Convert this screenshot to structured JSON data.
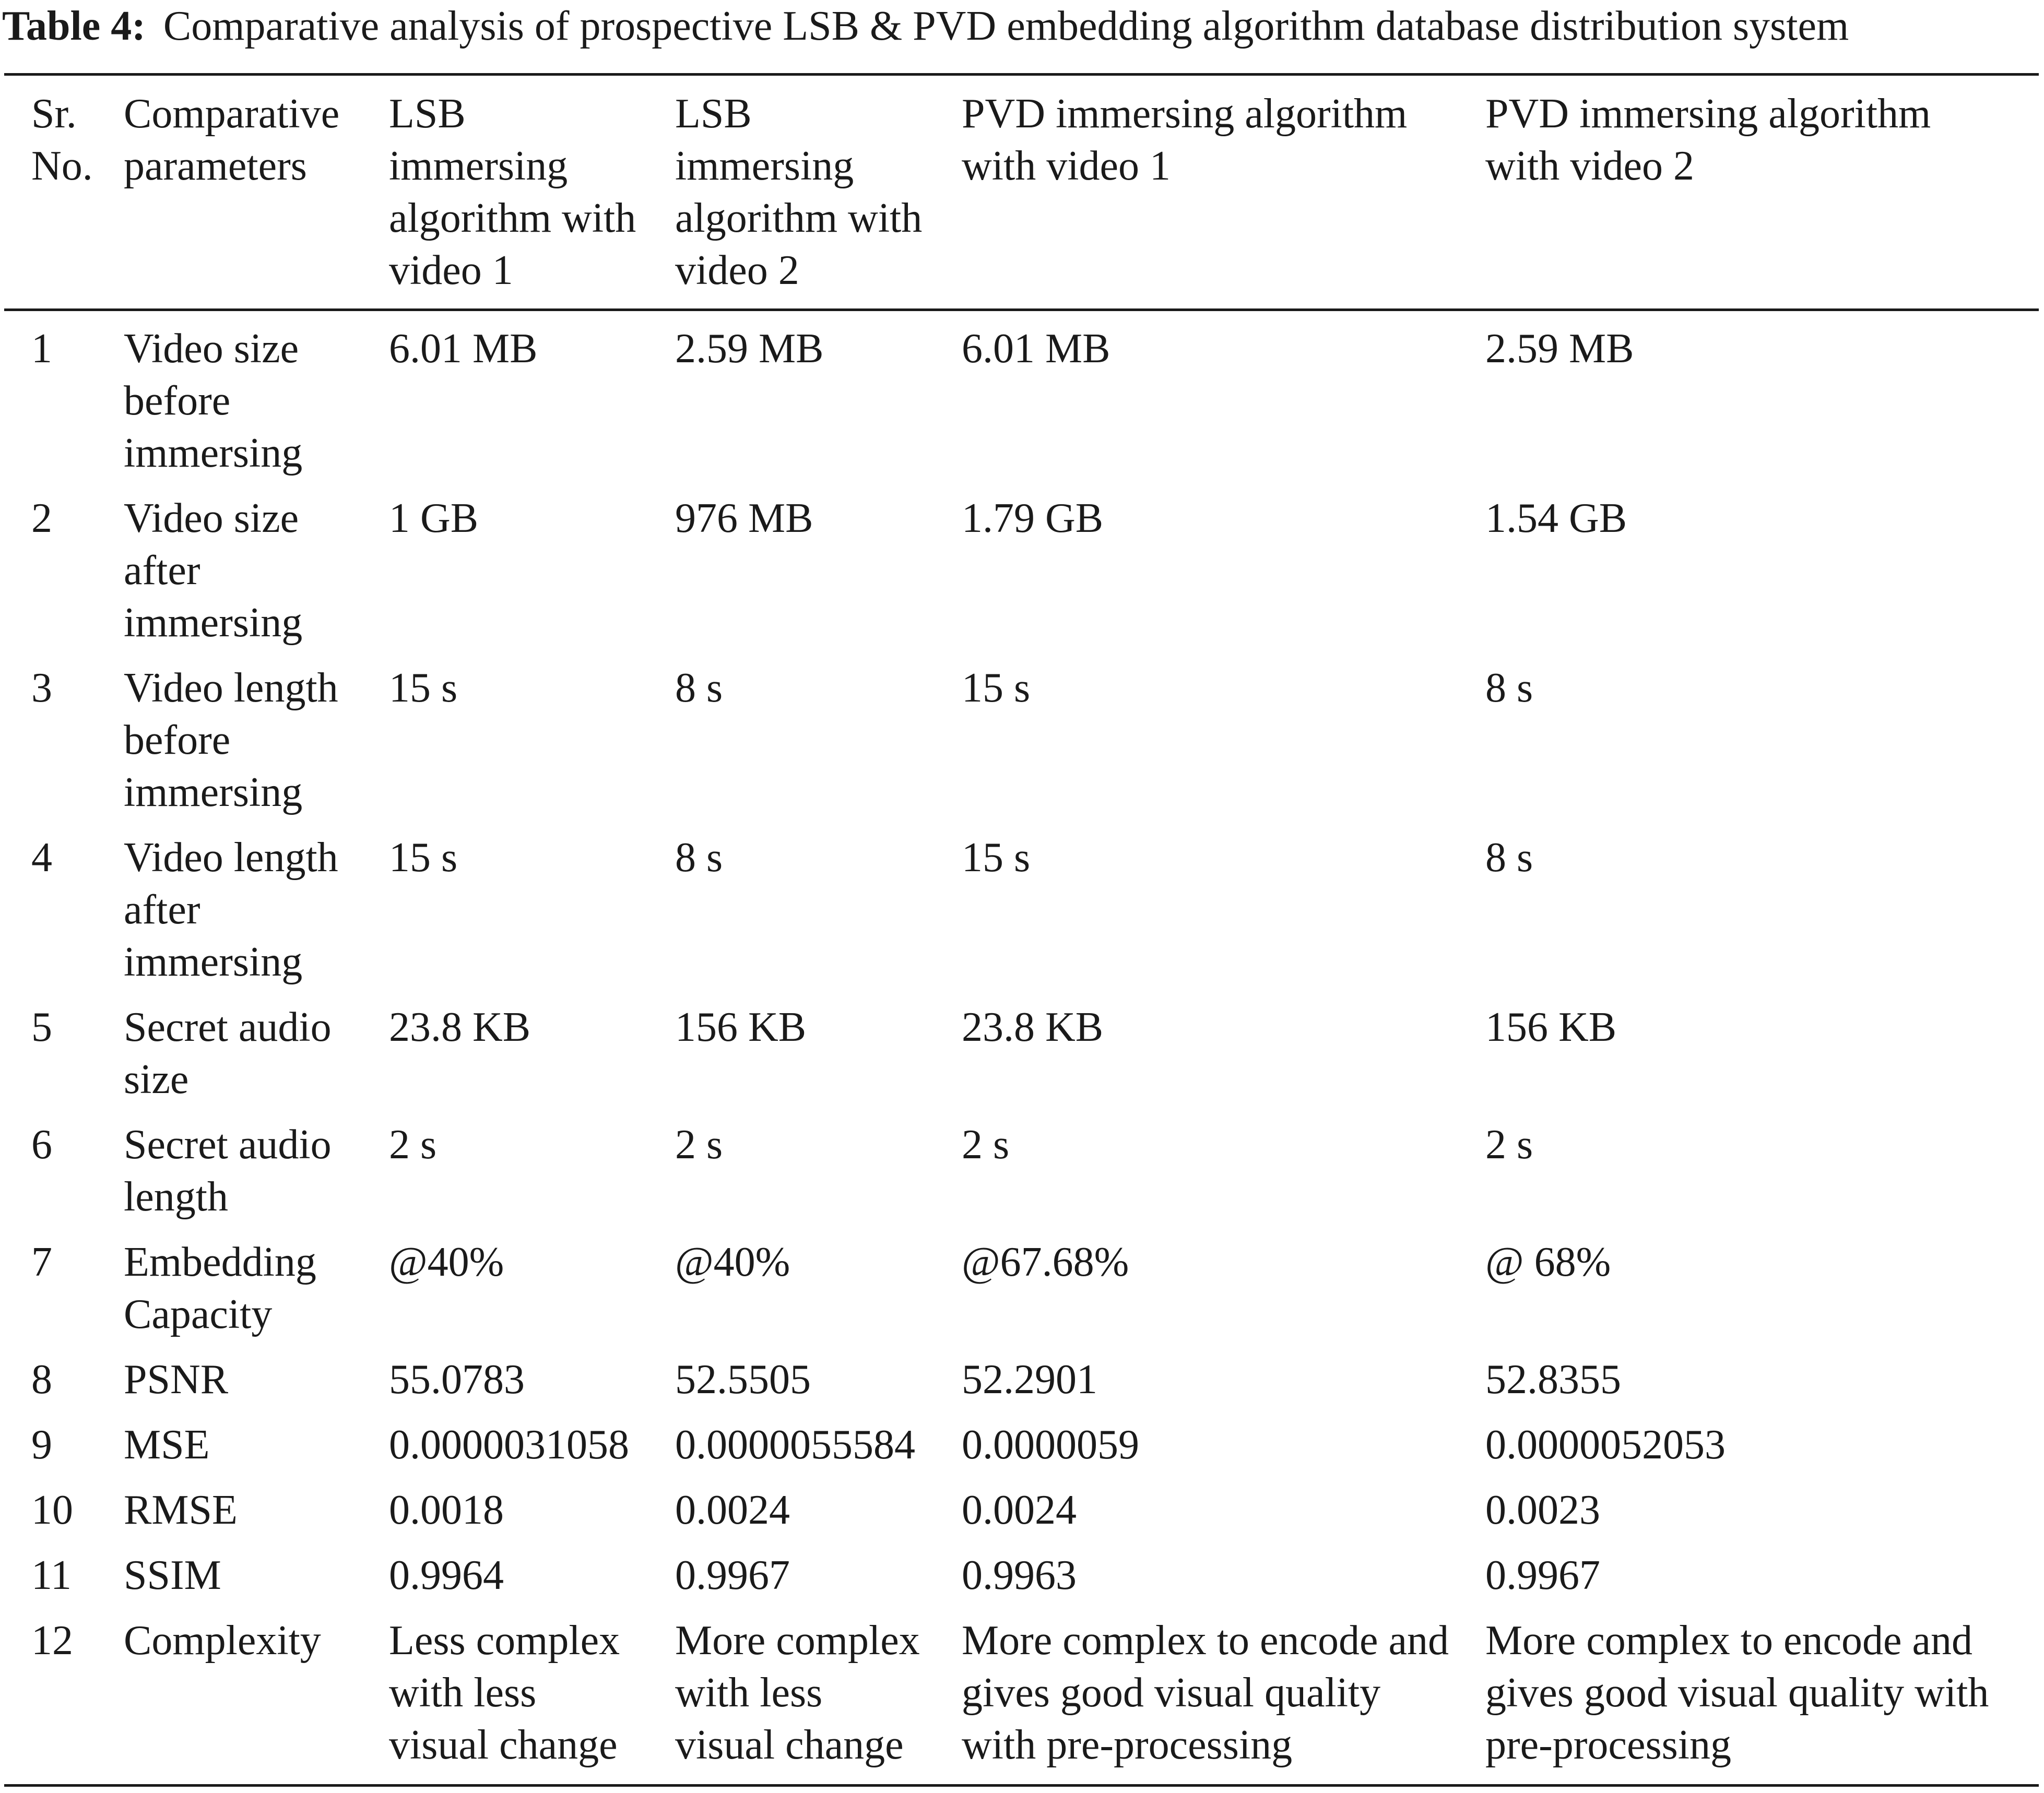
{
  "caption": {
    "label": "Table 4:",
    "text": "Comparative analysis of prospective LSB & PVD embedding algorithm database distribution system"
  },
  "headers": [
    [
      "Sr.",
      "No."
    ],
    [
      "Comparative",
      "parameters"
    ],
    [
      "LSB",
      "immersing",
      "algorithm with",
      "video 1"
    ],
    [
      "LSB",
      "immersing",
      "algorithm with",
      "video 2"
    ],
    [
      "PVD immersing algorithm",
      "with video 1"
    ],
    [
      "PVD immersing algorithm",
      "with video 2"
    ]
  ],
  "rows": [
    {
      "sr": "1",
      "param": [
        "Video size",
        "before",
        "immersing"
      ],
      "lsb1": [
        "6.01 MB"
      ],
      "lsb2": [
        "2.59 MB"
      ],
      "pvd1": [
        "6.01 MB"
      ],
      "pvd2": [
        "2.59 MB"
      ]
    },
    {
      "sr": "2",
      "param": [
        "Video size",
        "after",
        "immersing"
      ],
      "lsb1": [
        "1 GB"
      ],
      "lsb2": [
        "976 MB"
      ],
      "pvd1": [
        "1.79 GB"
      ],
      "pvd2": [
        "1.54 GB"
      ]
    },
    {
      "sr": "3",
      "param": [
        "Video length",
        "before",
        "immersing"
      ],
      "lsb1": [
        "15 s"
      ],
      "lsb2": [
        "8 s"
      ],
      "pvd1": [
        "15 s"
      ],
      "pvd2": [
        "8 s"
      ]
    },
    {
      "sr": "4",
      "param": [
        "Video length",
        "after",
        "immersing"
      ],
      "lsb1": [
        "15 s"
      ],
      "lsb2": [
        "8 s"
      ],
      "pvd1": [
        "15 s"
      ],
      "pvd2": [
        "8 s"
      ]
    },
    {
      "sr": "5",
      "param": [
        "Secret audio",
        "size"
      ],
      "lsb1": [
        "23.8 KB"
      ],
      "lsb2": [
        "156 KB"
      ],
      "pvd1": [
        "23.8 KB"
      ],
      "pvd2": [
        "156 KB"
      ]
    },
    {
      "sr": "6",
      "param": [
        "Secret audio",
        "length"
      ],
      "lsb1": [
        "2 s"
      ],
      "lsb2": [
        "2 s"
      ],
      "pvd1": [
        "2 s"
      ],
      "pvd2": [
        "2 s"
      ]
    },
    {
      "sr": "7",
      "param": [
        "Embedding",
        "Capacity"
      ],
      "lsb1": [
        "@40%"
      ],
      "lsb2": [
        "@40%"
      ],
      "pvd1": [
        "@67.68%"
      ],
      "pvd2": [
        "@ 68%"
      ]
    },
    {
      "sr": "8",
      "param": [
        "PSNR"
      ],
      "lsb1": [
        "55.0783"
      ],
      "lsb2": [
        "52.5505"
      ],
      "pvd1": [
        "52.2901"
      ],
      "pvd2": [
        "52.8355"
      ]
    },
    {
      "sr": "9",
      "param": [
        "MSE"
      ],
      "lsb1": [
        "0.0000031058"
      ],
      "lsb2": [
        "0.0000055584"
      ],
      "pvd1": [
        "0.0000059"
      ],
      "pvd2": [
        "0.0000052053"
      ]
    },
    {
      "sr": "10",
      "param": [
        "RMSE"
      ],
      "lsb1": [
        "0.0018"
      ],
      "lsb2": [
        "0.0024"
      ],
      "pvd1": [
        "0.0024"
      ],
      "pvd2": [
        "0.0023"
      ]
    },
    {
      "sr": "11",
      "param": [
        "SSIM"
      ],
      "lsb1": [
        "0.9964"
      ],
      "lsb2": [
        "0.9967"
      ],
      "pvd1": [
        "0.9963"
      ],
      "pvd2": [
        "0.9967"
      ]
    },
    {
      "sr": "12",
      "param": [
        "Complexity"
      ],
      "lsb1": [
        "Less complex",
        "with less",
        "visual change"
      ],
      "lsb2": [
        "More complex",
        "with less",
        "visual change"
      ],
      "pvd1": [
        "More complex to encode and",
        "gives good visual quality",
        "with pre-processing"
      ],
      "pvd2": [
        "More complex to encode and",
        "gives good visual quality with",
        "pre-processing"
      ]
    }
  ]
}
